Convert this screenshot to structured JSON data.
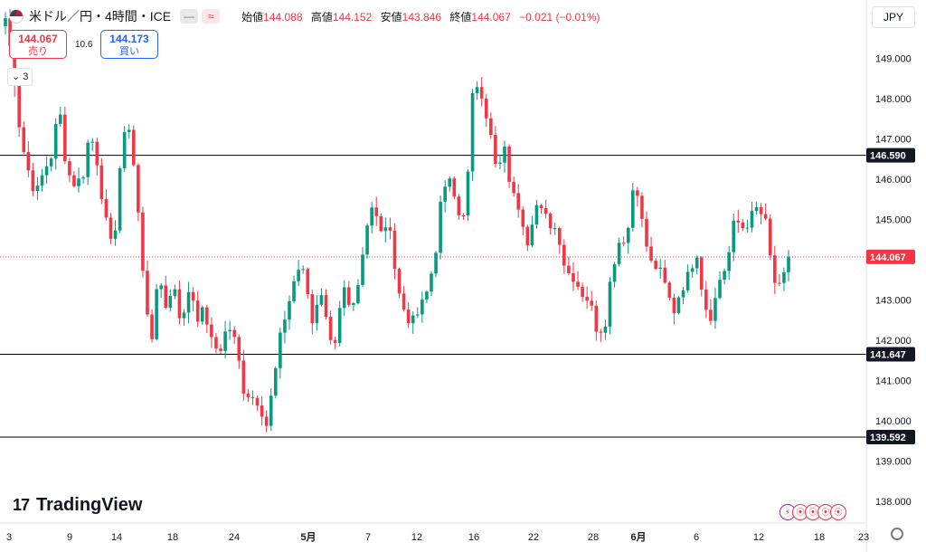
{
  "header": {
    "symbol": "米ドル／円・4時間・ICE",
    "open_label": "始値",
    "open": "144.088",
    "high_label": "高値",
    "high": "144.152",
    "low_label": "安値",
    "low": "143.846",
    "close_label": "終値",
    "close": "144.067",
    "change": "−0.021 (−0.01%)",
    "dot_button_1": "—",
    "dot_button_2": "≈"
  },
  "trade": {
    "sell_price": "144.067",
    "sell_label": "売り",
    "buy_price": "144.173",
    "buy_label": "買い",
    "spread": "10.6"
  },
  "collapse_label": "⌄ 3",
  "currency": "JPY",
  "logo_text": "TradingView",
  "logo_mark": "17",
  "events": [
    "⚡",
    "⦿",
    "⦿",
    "⦿",
    "⦿"
  ],
  "colors": {
    "up": "#089981",
    "down": "#f23645",
    "hline": "#000000",
    "price": "#f23645"
  },
  "chart_data": {
    "type": "candlestick",
    "ylim": [
      137.5,
      150.0
    ],
    "y_ticks": [
      "149.000",
      "148.000",
      "147.000",
      "146.000",
      "145.000",
      "143.000",
      "142.000",
      "141.000",
      "140.000",
      "139.000",
      "138.000"
    ],
    "x_ticks": [
      "3",
      "9",
      "14",
      "18",
      "24",
      "5月",
      "7",
      "12",
      "16",
      "22",
      "28",
      "6月",
      "6",
      "12",
      "18",
      "23"
    ],
    "horizontal_lines": [
      {
        "value": 146.59,
        "label": "146.590"
      },
      {
        "value": 141.647,
        "label": "141.647"
      },
      {
        "value": 139.592,
        "label": "139.592"
      }
    ],
    "current_price": {
      "value": 144.067,
      "label": "144.067"
    },
    "anchors": [
      150.0,
      148.8,
      147.0,
      146.2,
      145.6,
      146.2,
      146.6,
      147.8,
      146.2,
      145.9,
      146.0,
      147.2,
      146.4,
      145.0,
      144.1,
      146.5,
      147.5,
      145.9,
      143.4,
      142.0,
      143.6,
      142.8,
      143.4,
      142.3,
      143.4,
      142.6,
      142.7,
      141.8,
      141.8,
      142.4,
      141.9,
      140.8,
      140.6,
      140.5,
      139.9,
      141.0,
      142.3,
      143.0,
      143.8,
      143.6,
      142.4,
      143.4,
      142.2,
      142.0,
      143.3,
      142.5,
      143.3,
      144.7,
      145.5,
      144.7,
      145.0,
      143.3,
      142.6,
      142.4,
      143.0,
      143.2,
      144.2,
      145.8,
      145.9,
      145.1,
      145.3,
      148.5,
      148.2,
      147.3,
      146.1,
      146.7,
      145.6,
      145.3,
      144.5,
      145.4,
      145.1,
      144.9,
      144.7,
      143.7,
      143.6,
      143.2,
      143.0,
      142.3,
      142.3,
      143.8,
      144.5,
      144.6,
      146.2,
      144.8,
      143.9,
      143.8,
      143.3,
      142.7,
      143.3,
      143.6,
      144.3,
      142.9,
      142.6,
      143.5,
      143.9,
      145.0,
      144.8,
      145.0,
      145.3,
      144.9,
      143.5,
      143.2,
      144.067
    ]
  }
}
